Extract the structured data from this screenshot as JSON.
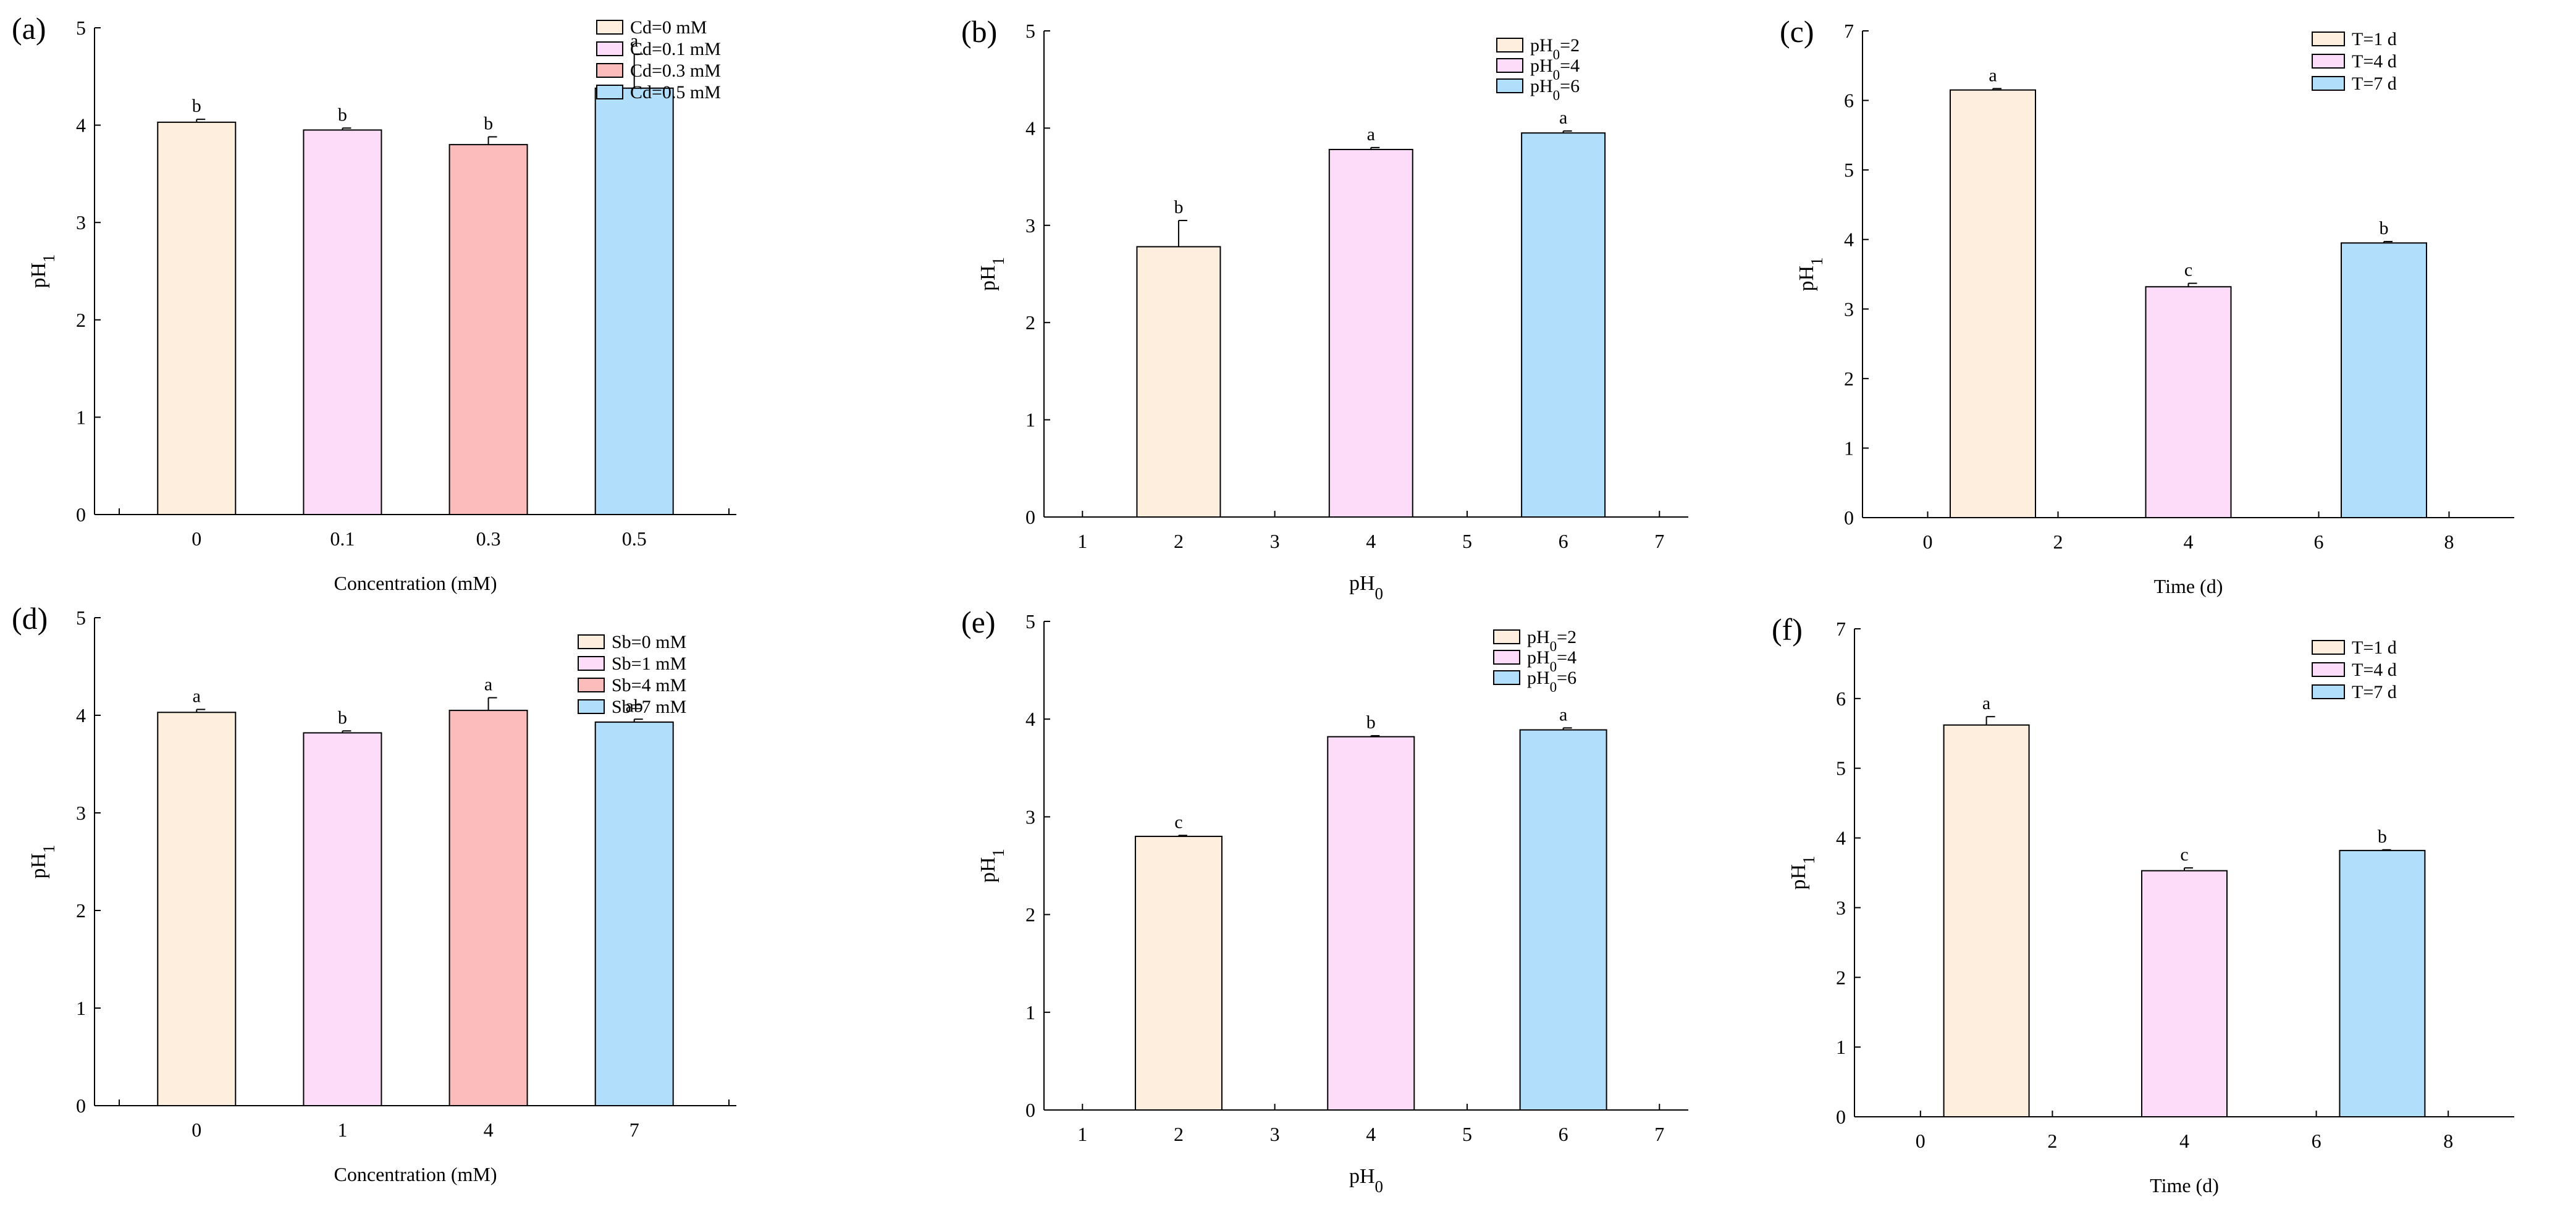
{
  "colors": {
    "c1": "#fdeedd",
    "c2": "#fddcfa",
    "c3": "#fcbcbc",
    "c4": "#b1defa",
    "stroke": "#000000"
  },
  "chart_data": [
    {
      "panel_label": "(a)",
      "type": "bar",
      "axis_kind": "categorical",
      "title": "",
      "xlabel": "Concentration (mM)",
      "ylabel": "pH1",
      "ylabel_main": "pH",
      "ylabel_sub": "1",
      "ylim": [
        0,
        5
      ],
      "yticks": [
        "0",
        "1",
        "2",
        "3",
        "4",
        "5"
      ],
      "categories": [
        "0",
        "0.1",
        "0.3",
        "0.5"
      ],
      "values": [
        4.03,
        3.95,
        3.8,
        4.38
      ],
      "errors": [
        0.03,
        0.02,
        0.08,
        0.35
      ],
      "letters": [
        "b",
        "b",
        "b",
        "a"
      ],
      "colors": [
        "c1",
        "c2",
        "c3",
        "c4"
      ],
      "legend": [
        "Cd=0 mM",
        "Cd=0.1 mM",
        "Cd=0.3 mM",
        "Cd=0.5 mM"
      ],
      "legend_position": "top-right"
    },
    {
      "panel_label": "(b)",
      "type": "bar",
      "axis_kind": "numeric",
      "title": "",
      "xlabel": "pH0",
      "xlabel_main": "pH",
      "xlabel_sub": "0",
      "ylabel": "pH1",
      "ylabel_main": "pH",
      "ylabel_sub": "1",
      "ylim": [
        0,
        5
      ],
      "yticks": [
        "0",
        "1",
        "2",
        "3",
        "4",
        "5"
      ],
      "xlim": [
        0.6,
        7.3
      ],
      "xticks": [
        "1",
        "2",
        "3",
        "4",
        "5",
        "6",
        "7"
      ],
      "x": [
        2,
        4,
        6
      ],
      "values": [
        2.78,
        3.78,
        3.95
      ],
      "errors": [
        0.27,
        0.02,
        0.02
      ],
      "letters": [
        "b",
        "a",
        "a"
      ],
      "colors": [
        "c1",
        "c2",
        "c4"
      ],
      "legend": [
        {
          "main": "pH",
          "sub": "0",
          "tail": "=2"
        },
        {
          "main": "pH",
          "sub": "0",
          "tail": "=4"
        },
        {
          "main": "pH",
          "sub": "0",
          "tail": "=6"
        }
      ],
      "legend_position": "top-right"
    },
    {
      "panel_label": "(c)",
      "type": "bar",
      "axis_kind": "numeric",
      "title": "",
      "xlabel": "Time (d)",
      "ylabel": "pH1",
      "ylabel_main": "pH",
      "ylabel_sub": "1",
      "ylim": [
        0,
        7
      ],
      "yticks": [
        "0",
        "1",
        "2",
        "3",
        "4",
        "5",
        "6",
        "7"
      ],
      "xlim": [
        -1,
        9
      ],
      "xticks": [
        "0",
        "2",
        "4",
        "6",
        "8"
      ],
      "x": [
        1,
        4,
        7
      ],
      "values": [
        6.15,
        3.32,
        3.95
      ],
      "errors": [
        0.02,
        0.05,
        0.02
      ],
      "letters": [
        "a",
        "c",
        "b"
      ],
      "colors": [
        "c1",
        "c2",
        "c4"
      ],
      "legend": [
        "T=1 d",
        "T=4 d",
        "T=7 d"
      ],
      "legend_position": "top-right"
    },
    {
      "panel_label": "(d)",
      "type": "bar",
      "axis_kind": "categorical",
      "title": "",
      "xlabel": "Concentration (mM)",
      "ylabel": "pH1",
      "ylabel_main": "pH",
      "ylabel_sub": "1",
      "ylim": [
        0,
        5
      ],
      "yticks": [
        "0",
        "1",
        "2",
        "3",
        "4",
        "5"
      ],
      "categories": [
        "0",
        "1",
        "4",
        "7"
      ],
      "values": [
        4.03,
        3.82,
        4.05,
        3.93
      ],
      "errors": [
        0.03,
        0.02,
        0.13,
        0.03
      ],
      "letters": [
        "a",
        "b",
        "a",
        "ab"
      ],
      "colors": [
        "c1",
        "c2",
        "c3",
        "c4"
      ],
      "legend": [
        "Sb=0 mM",
        "Sb=1 mM",
        "Sb=4 mM",
        "Sb=7 mM"
      ],
      "legend_position": "top-right"
    },
    {
      "panel_label": "(e)",
      "type": "bar",
      "axis_kind": "numeric",
      "title": "",
      "xlabel": "pH0",
      "xlabel_main": "pH",
      "xlabel_sub": "0",
      "ylabel": "pH1",
      "ylabel_main": "pH",
      "ylabel_sub": "1",
      "ylim": [
        0,
        5
      ],
      "yticks": [
        "0",
        "1",
        "2",
        "3",
        "4",
        "5"
      ],
      "xlim": [
        0.6,
        7.3
      ],
      "xticks": [
        "1",
        "2",
        "3",
        "4",
        "5",
        "6",
        "7"
      ],
      "x": [
        2,
        4,
        6
      ],
      "values": [
        2.8,
        3.82,
        3.89
      ],
      "errors": [
        0.01,
        0.01,
        0.02
      ],
      "letters": [
        "c",
        "b",
        "a"
      ],
      "colors": [
        "c1",
        "c2",
        "c4"
      ],
      "legend": [
        {
          "main": "pH",
          "sub": "0",
          "tail": "=2"
        },
        {
          "main": "pH",
          "sub": "0",
          "tail": "=4"
        },
        {
          "main": "pH",
          "sub": "0",
          "tail": "=6"
        }
      ],
      "legend_position": "top-right"
    },
    {
      "panel_label": "(f)",
      "type": "bar",
      "axis_kind": "numeric",
      "title": "",
      "xlabel": "Time (d)",
      "ylabel": "pH1",
      "ylabel_main": "pH",
      "ylabel_sub": "1",
      "ylim": [
        0,
        7
      ],
      "yticks": [
        "0",
        "1",
        "2",
        "3",
        "4",
        "5",
        "6",
        "7"
      ],
      "xlim": [
        -1,
        9
      ],
      "xticks": [
        "0",
        "2",
        "4",
        "6",
        "8"
      ],
      "x": [
        1,
        4,
        7
      ],
      "values": [
        5.62,
        3.53,
        3.82
      ],
      "errors": [
        0.12,
        0.04,
        0.01
      ],
      "letters": [
        "a",
        "c",
        "b"
      ],
      "colors": [
        "c1",
        "c2",
        "c4"
      ],
      "legend": [
        "T=1 d",
        "T=4 d",
        "T=7 d"
      ],
      "legend_position": "top-right"
    }
  ]
}
